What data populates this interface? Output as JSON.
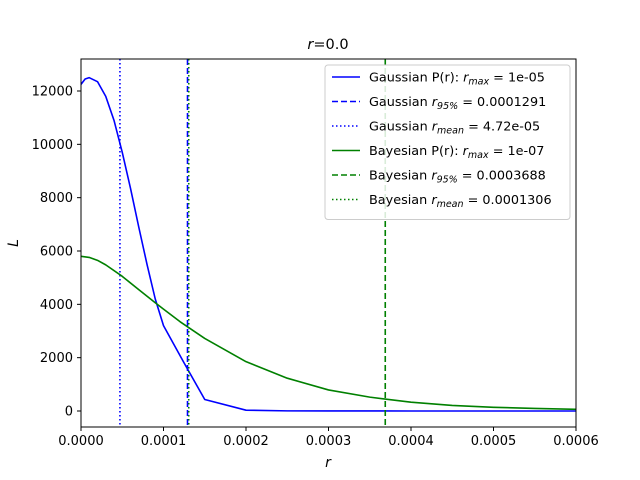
{
  "chart_data": {
    "type": "line",
    "title_var": "r",
    "title_rest": "=0.0",
    "xlabel": "r",
    "ylabel": "L",
    "xlim": [
      0,
      0.0006
    ],
    "ylim": [
      -600,
      13200
    ],
    "xticks": [
      0,
      0.0001,
      0.0002,
      0.0003,
      0.0004,
      0.0005,
      0.0006
    ],
    "xtick_labels": [
      "0.0000",
      "0.0001",
      "0.0002",
      "0.0003",
      "0.0004",
      "0.0005",
      "0.0006"
    ],
    "yticks": [
      0,
      2000,
      4000,
      6000,
      8000,
      10000,
      12000
    ],
    "ytick_labels": [
      "0",
      "2000",
      "4000",
      "6000",
      "8000",
      "10000",
      "12000"
    ],
    "grid": false,
    "legend_position": "top-right",
    "series": [
      {
        "name": "Gaussian P(r): r_max = 1e-05",
        "color": "#0000ff",
        "style": "solid",
        "x": [
          0,
          5e-06,
          1e-05,
          2e-05,
          3e-05,
          4e-05,
          5e-05,
          6e-05,
          7e-05,
          8e-05,
          9e-05,
          0.0001,
          0.000125,
          0.00015,
          0.0002,
          0.00025,
          0.0003,
          0.0004,
          0.0005,
          0.0006
        ],
        "y": [
          12250,
          12450,
          12500,
          12350,
          11800,
          10900,
          9700,
          8350,
          6900,
          5500,
          4200,
          3200,
          1800,
          430,
          30,
          5,
          2,
          0,
          0,
          0
        ]
      },
      {
        "name": "Gaussian r_95% = 0.0001291",
        "color": "#0000ff",
        "style": "dashed",
        "vline": 0.0001291
      },
      {
        "name": "Gaussian r_mean = 4.72e-05",
        "color": "#0000ff",
        "style": "dotted",
        "vline": 4.72e-05
      },
      {
        "name": "Bayesian P(r): r_max = 1e-07",
        "color": "#008000",
        "style": "solid",
        "x": [
          0,
          1e-05,
          2e-05,
          3e-05,
          5e-05,
          7e-05,
          9e-05,
          0.0001,
          0.00012,
          0.00015,
          0.0002,
          0.00025,
          0.0003,
          0.00035,
          0.0004,
          0.00045,
          0.0005,
          0.00055,
          0.0006
        ],
        "y": [
          5800,
          5760,
          5650,
          5480,
          5050,
          4550,
          4060,
          3820,
          3350,
          2720,
          1850,
          1230,
          790,
          520,
          330,
          210,
          140,
          95,
          65
        ]
      },
      {
        "name": "Bayesian r_95% = 0.0003688",
        "color": "#008000",
        "style": "dashed",
        "vline": 0.0003688
      },
      {
        "name": "Bayesian r_mean = 0.0001306",
        "color": "#008000",
        "style": "dotted",
        "vline": 0.0001306
      }
    ],
    "legend": [
      {
        "pre": "Gaussian P(r): ",
        "math": "r",
        "sub": "max",
        "post": " = 1e-05",
        "color": "#0000ff",
        "style": "solid"
      },
      {
        "pre": "Gaussian ",
        "math": "r",
        "sub": "95%",
        "post": " = 0.0001291",
        "color": "#0000ff",
        "style": "dashed"
      },
      {
        "pre": "Gaussian ",
        "math": "r",
        "sub": "mean",
        "post": " = 4.72e-05",
        "color": "#0000ff",
        "style": "dotted"
      },
      {
        "pre": "Bayesian P(r): ",
        "math": "r",
        "sub": "max",
        "post": " = 1e-07",
        "color": "#008000",
        "style": "solid"
      },
      {
        "pre": "Bayesian ",
        "math": "r",
        "sub": "95%",
        "post": " = 0.0003688",
        "color": "#008000",
        "style": "dashed"
      },
      {
        "pre": "Bayesian ",
        "math": "r",
        "sub": "mean",
        "post": " = 0.0001306",
        "color": "#008000",
        "style": "dotted"
      }
    ]
  }
}
